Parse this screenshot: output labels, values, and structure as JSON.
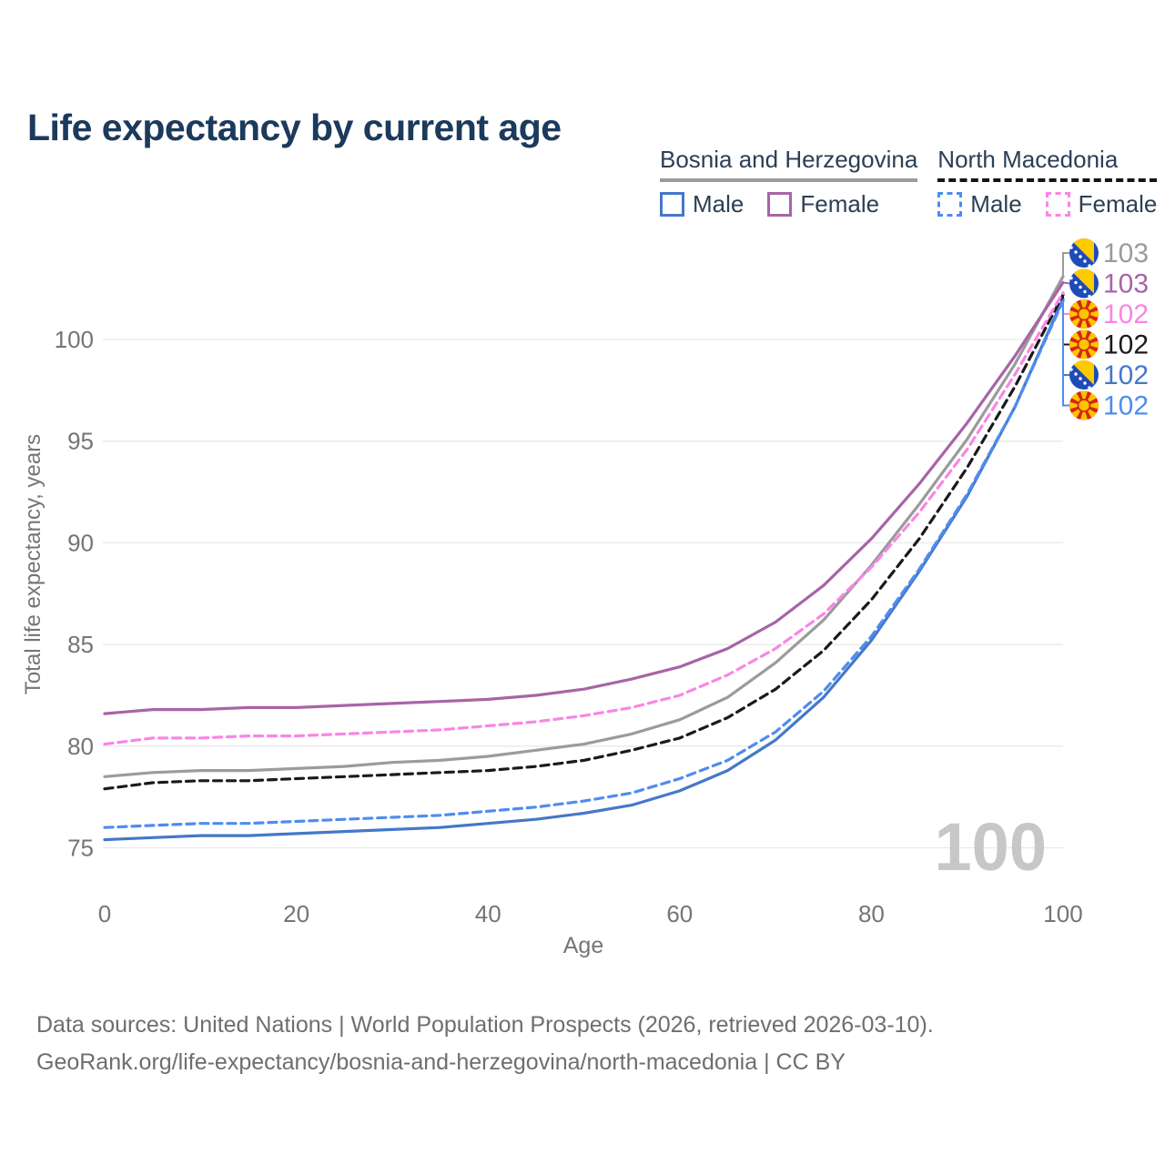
{
  "header": {
    "title": "Life expectancy by current age"
  },
  "legend": {
    "groups": [
      {
        "title": "Bosnia and Herzegovina",
        "underline_style": "solid",
        "underline_color": "#9b9b9b",
        "items": [
          {
            "label": "Male",
            "color": "#4478c8",
            "dash": "solid"
          },
          {
            "label": "Female",
            "color": "#a864a6",
            "dash": "solid"
          }
        ]
      },
      {
        "title": "North Macedonia",
        "underline_style": "dashed",
        "underline_color": "#141414",
        "items": [
          {
            "label": "Male",
            "color": "#4e8cf0",
            "dash": "dashed"
          },
          {
            "label": "Female",
            "color": "#f985e6",
            "dash": "dashed"
          }
        ]
      }
    ]
  },
  "chart_data": {
    "type": "line",
    "title": "Life expectancy by current age",
    "xlabel": "Age",
    "ylabel": "Total life expectancy, years",
    "x_ticks": [
      0,
      20,
      40,
      60,
      80,
      100
    ],
    "y_ticks": [
      75,
      80,
      85,
      90,
      95,
      100
    ],
    "xlim": [
      0,
      100
    ],
    "ylim": [
      73.5,
      103.5
    ],
    "grid": "horizontal",
    "hover_age_indicator": "100",
    "ages": [
      0,
      5,
      10,
      15,
      20,
      25,
      30,
      35,
      40,
      45,
      50,
      55,
      60,
      65,
      70,
      75,
      80,
      85,
      90,
      95,
      100
    ],
    "series": [
      {
        "id": "bih_total",
        "name": "Bosnia and Herzegovina — Total",
        "color": "#9b9b9b",
        "dash": "solid",
        "values": [
          78.5,
          78.7,
          78.8,
          78.8,
          78.9,
          79.0,
          79.2,
          79.3,
          79.5,
          79.8,
          80.1,
          80.6,
          81.3,
          82.4,
          84.1,
          86.2,
          88.9,
          91.9,
          95.1,
          98.8,
          103.1
        ]
      },
      {
        "id": "bih_female",
        "name": "Bosnia and Herzegovina — Female",
        "color": "#a864a6",
        "dash": "solid",
        "values": [
          81.6,
          81.8,
          81.8,
          81.9,
          81.9,
          82.0,
          82.1,
          82.2,
          82.3,
          82.5,
          82.8,
          83.3,
          83.9,
          84.8,
          86.1,
          87.9,
          90.2,
          92.9,
          95.9,
          99.2,
          102.8
        ]
      },
      {
        "id": "bih_male",
        "name": "Bosnia and Herzegovina — Male",
        "color": "#4478c8",
        "dash": "solid",
        "values": [
          75.4,
          75.5,
          75.6,
          75.6,
          75.7,
          75.8,
          75.9,
          76.0,
          76.2,
          76.4,
          76.7,
          77.1,
          77.8,
          78.8,
          80.3,
          82.4,
          85.2,
          88.6,
          92.3,
          96.7,
          102.0
        ]
      },
      {
        "id": "nm_total",
        "name": "North Macedonia — Total",
        "color": "#1a1a1a",
        "dash": "dashed",
        "values": [
          77.9,
          78.2,
          78.3,
          78.3,
          78.4,
          78.5,
          78.6,
          78.7,
          78.8,
          79.0,
          79.3,
          79.8,
          80.4,
          81.4,
          82.8,
          84.7,
          87.2,
          90.2,
          93.7,
          97.7,
          102.2
        ]
      },
      {
        "id": "nm_female",
        "name": "North Macedonia — Female",
        "color": "#f985e6",
        "dash": "dashed",
        "values": [
          80.1,
          80.4,
          80.4,
          80.5,
          80.5,
          80.6,
          80.7,
          80.8,
          81.0,
          81.2,
          81.5,
          81.9,
          82.5,
          83.5,
          84.8,
          86.5,
          88.8,
          91.5,
          94.6,
          98.3,
          102.3
        ]
      },
      {
        "id": "nm_male",
        "name": "North Macedonia — Male",
        "color": "#4e8cf0",
        "dash": "dashed",
        "values": [
          76.0,
          76.1,
          76.2,
          76.2,
          76.3,
          76.4,
          76.5,
          76.6,
          76.8,
          77.0,
          77.3,
          77.7,
          78.4,
          79.3,
          80.7,
          82.7,
          85.4,
          88.7,
          92.4,
          96.7,
          101.9
        ]
      }
    ],
    "end_labels": [
      {
        "series": "bih_total",
        "flag": "bosnia-and-herzegovina",
        "value": "103",
        "color": "#9b9b9b"
      },
      {
        "series": "bih_female",
        "flag": "bosnia-and-herzegovina",
        "value": "103",
        "color": "#a864a6"
      },
      {
        "series": "nm_female",
        "flag": "north-macedonia",
        "value": "102",
        "color": "#f985e6"
      },
      {
        "series": "nm_total",
        "flag": "north-macedonia",
        "value": "102",
        "color": "#1a1a1a"
      },
      {
        "series": "bih_male",
        "flag": "bosnia-and-herzegovina",
        "value": "102",
        "color": "#4478c8"
      },
      {
        "series": "nm_male",
        "flag": "north-macedonia",
        "value": "102",
        "color": "#4e8cf0"
      }
    ]
  },
  "footer": {
    "line1": "Data sources: United Nations | World Population Prospects (2026, retrieved 2026-03-10).",
    "line2": "GeoRank.org/life-expectancy/bosnia-and-herzegovina/north-macedonia | CC BY"
  }
}
